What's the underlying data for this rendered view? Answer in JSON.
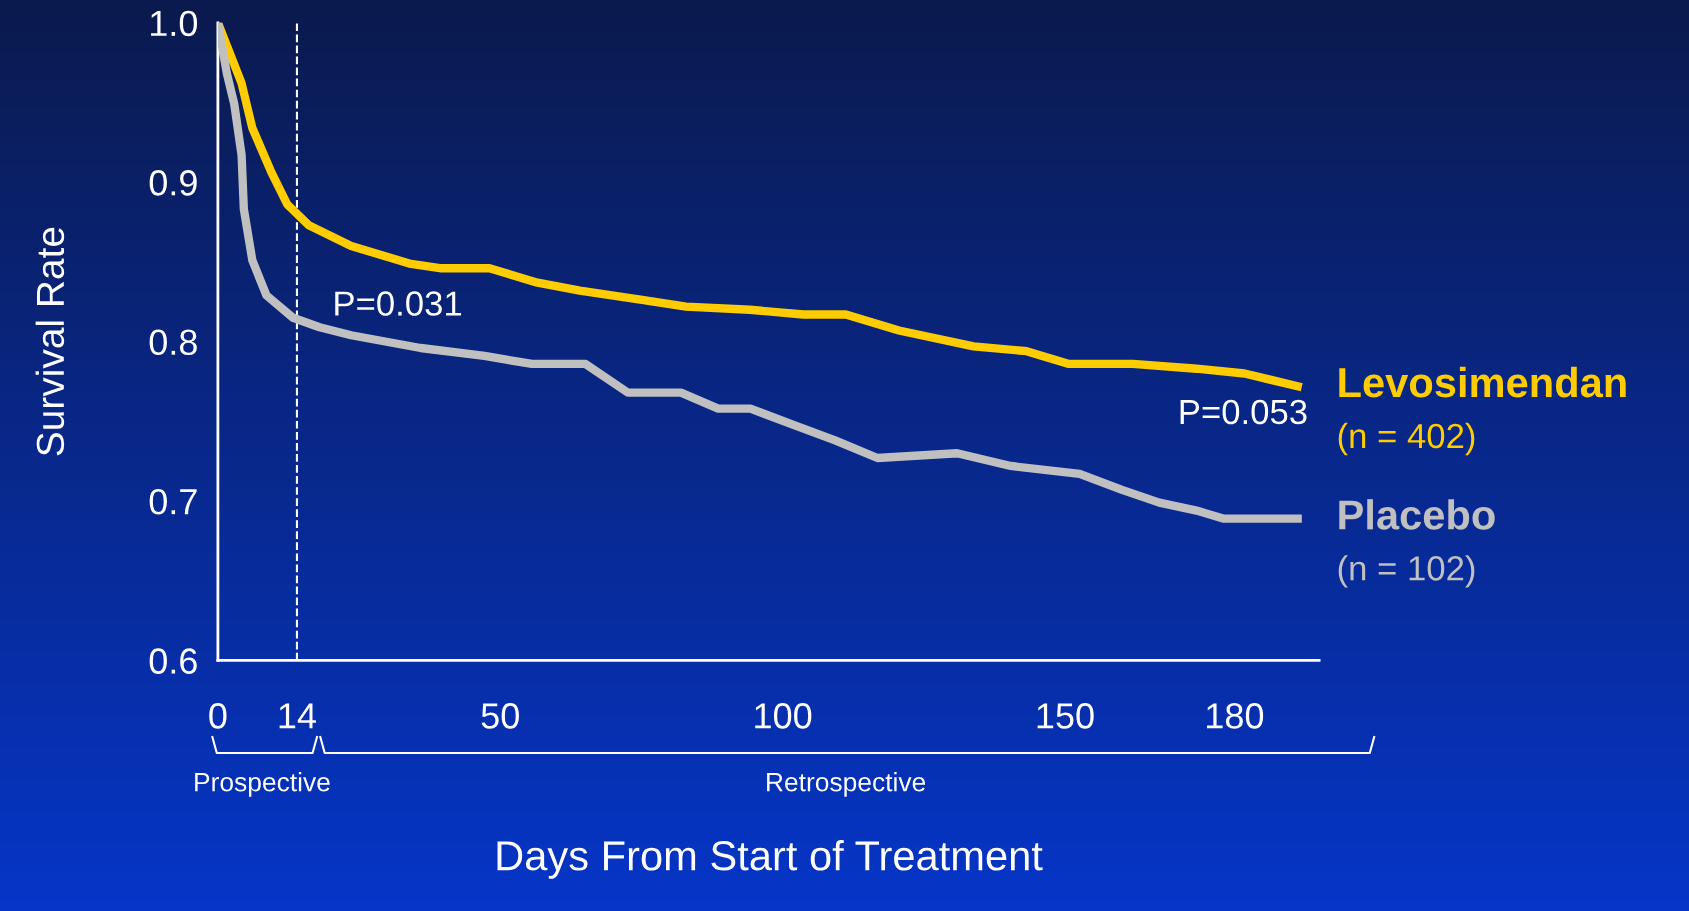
{
  "chart_data": {
    "type": "line",
    "xlabel": "Days From Start of Treatment",
    "ylabel": "Survival Rate",
    "xlim": [
      0,
      195
    ],
    "xticks": [
      0,
      14,
      50,
      100,
      150,
      180
    ],
    "ylim": [
      0.6,
      1.0
    ],
    "yticks": [
      0.6,
      0.7,
      0.8,
      0.9,
      {
        "value": 1.0,
        "label": "1.0"
      }
    ],
    "grid": false,
    "marker": "none",
    "line_style": "solid",
    "series": [
      {
        "name": "Levosimendan\n(n = 402)",
        "color": "#ffcc00",
        "x": [
          0,
          2.0,
          4.2,
          6.1,
          9.5,
          12.3,
          16.1,
          23.6,
          33.9,
          39.6,
          48.1,
          56.6,
          64.1,
          75.4,
          82.9,
          94.2,
          103.7,
          111.2,
          120.6,
          133.8,
          143.2,
          150.7,
          162.0,
          173.3,
          181.8,
          191.2
        ],
        "values": [
          1.0,
          0.982,
          0.962,
          0.934,
          0.906,
          0.886,
          0.873,
          0.86,
          0.849,
          0.846,
          0.846,
          0.837,
          0.832,
          0.826,
          0.822,
          0.82,
          0.817,
          0.817,
          0.807,
          0.797,
          0.794,
          0.786,
          0.786,
          0.783,
          0.78,
          0.772
        ]
      },
      {
        "name": "Placebo\n(n = 102)",
        "color": "#c0c0c0",
        "x": [
          0,
          1.6,
          2.9,
          4.2,
          4.6,
          6.1,
          8.6,
          13.3,
          18.0,
          23.6,
          35.9,
          47.2,
          55.6,
          65.1,
          72.6,
          82.0,
          88.6,
          94.3,
          101.8,
          109.3,
          116.8,
          130.9,
          140.4,
          152.6,
          160.1,
          166.7,
          173.3,
          178.0,
          191.2
        ],
        "values": [
          1.0,
          0.968,
          0.949,
          0.917,
          0.883,
          0.851,
          0.829,
          0.815,
          0.809,
          0.804,
          0.796,
          0.791,
          0.786,
          0.786,
          0.768,
          0.768,
          0.758,
          0.758,
          0.748,
          0.738,
          0.727,
          0.73,
          0.722,
          0.717,
          0.707,
          0.699,
          0.694,
          0.689,
          0.689
        ]
      }
    ],
    "ref_lines": [
      {
        "axis": "x",
        "value": 14,
        "color": "#ffffff",
        "line_style": "dashed"
      }
    ],
    "annotations": [
      "P=0.031",
      "P=0.053",
      "Prospective",
      "Retrospective"
    ]
  }
}
